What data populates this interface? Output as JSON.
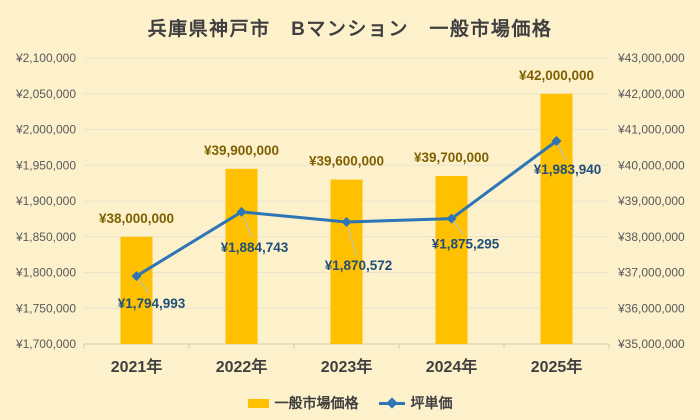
{
  "colors": {
    "background": "#FDF1CC",
    "grid": "#EAE3CC",
    "axis": "#D5CDB4",
    "tick_text": "#595959",
    "title_text": "#3F3F3F",
    "x_label_text": "#3F3F3F",
    "bar": "#FFC000",
    "bar_label": "#7F6000",
    "line": "#2E75B6",
    "line_label": "#1F4E79",
    "leader": "#A9C1DE"
  },
  "chart_data": {
    "type": "combo-bar-line",
    "title": "兵庫県神戸市　Bマンション　一般市場価格",
    "categories": [
      "2021年",
      "2022年",
      "2023年",
      "2024年",
      "2025年"
    ],
    "series": [
      {
        "name": "一般市場価格",
        "chart": "bar",
        "axis": "right",
        "values": [
          38000000,
          39900000,
          39600000,
          39700000,
          42000000
        ],
        "data_labels": [
          "¥38,000,000",
          "¥39,900,000",
          "¥39,600,000",
          "¥39,700,000",
          "¥42,000,000"
        ]
      },
      {
        "name": "坪単価",
        "chart": "line",
        "axis": "left",
        "values": [
          1794993,
          1884743,
          1870572,
          1875295,
          1983940
        ],
        "data_labels": [
          "¥1,794,993",
          "¥1,884,743",
          "¥1,870,572",
          "¥1,875,295",
          "¥1,983,940"
        ],
        "label_offsets": [
          [
            15,
            27
          ],
          [
            13,
            35
          ],
          [
            12,
            43
          ],
          [
            14,
            25
          ],
          [
            11,
            28
          ]
        ]
      }
    ],
    "left_axis": {
      "min": 1700000,
      "max": 2100000,
      "step": 50000,
      "tick_labels": [
        "¥2,100,000",
        "¥2,050,000",
        "¥2,000,000",
        "¥1,950,000",
        "¥1,900,000",
        "¥1,850,000",
        "¥1,800,000",
        "¥1,750,000",
        "¥1,700,000"
      ]
    },
    "right_axis": {
      "min": 35000000,
      "max": 43000000,
      "step": 1000000,
      "tick_labels": [
        "¥43,000,000",
        "¥42,000,000",
        "¥41,000,000",
        "¥40,000,000",
        "¥39,000,000",
        "¥38,000,000",
        "¥37,000,000",
        "¥36,000,000",
        "¥35,000,000"
      ]
    },
    "grid": true,
    "legend_position": "bottom"
  }
}
